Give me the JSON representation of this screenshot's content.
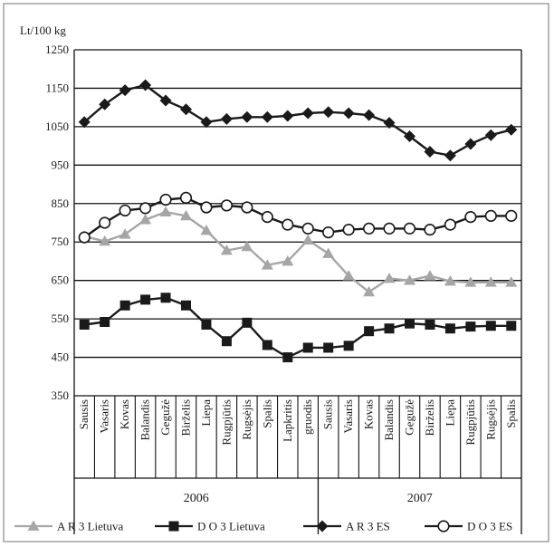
{
  "chart_data": {
    "type": "line",
    "title": "",
    "ylabel": "Lt/100 kg",
    "xlabel": "",
    "ylim": [
      350,
      1250
    ],
    "yticks": [
      350,
      450,
      550,
      650,
      750,
      850,
      950,
      1050,
      1150,
      1250
    ],
    "grid": true,
    "legend_position": "bottom",
    "categories": [
      "Sausis",
      "Vasaris",
      "Kovas",
      "Balandis",
      "Gegužė",
      "Birželis",
      "Liepa",
      "Rugpjūtis",
      "Rugsėjis",
      "Spalis",
      "Lapkritis",
      "gruodis",
      "Sausis",
      "Vasaris",
      "Kovas",
      "Balandis",
      "Gegužė",
      "Birželis",
      "Liepa",
      "Rugpjūtis",
      "Rugsėjis",
      "Spalis"
    ],
    "year_groups": [
      {
        "label": "2006",
        "count": 12
      },
      {
        "label": "2007",
        "count": 10
      }
    ],
    "series": [
      {
        "name": "A R 3 Lietuva",
        "color": "#a6a6a6",
        "marker": "triangle",
        "values": [
          765,
          752,
          770,
          808,
          828,
          818,
          780,
          728,
          738,
          690,
          700,
          755,
          720,
          662,
          620,
          655,
          650,
          662,
          648,
          645,
          645,
          645
        ]
      },
      {
        "name": "D O 3 Lietuva",
        "color": "#1a1a1a",
        "marker": "square",
        "values": [
          535,
          542,
          585,
          600,
          605,
          585,
          535,
          492,
          540,
          482,
          450,
          475,
          475,
          480,
          518,
          525,
          538,
          535,
          525,
          530,
          532,
          532
        ]
      },
      {
        "name": "A R 3 ES",
        "color": "#1a1a1a",
        "marker": "diamond",
        "values": [
          1062,
          1108,
          1145,
          1158,
          1118,
          1095,
          1062,
          1070,
          1075,
          1075,
          1078,
          1085,
          1088,
          1085,
          1080,
          1060,
          1025,
          985,
          975,
          1005,
          1028,
          1042
        ]
      },
      {
        "name": "D O 3 ES",
        "color": "#1a1a1a",
        "marker": "circle",
        "values": [
          762,
          800,
          832,
          838,
          860,
          865,
          840,
          845,
          840,
          815,
          795,
          785,
          775,
          782,
          785,
          785,
          785,
          782,
          795,
          815,
          818,
          818
        ]
      }
    ]
  }
}
